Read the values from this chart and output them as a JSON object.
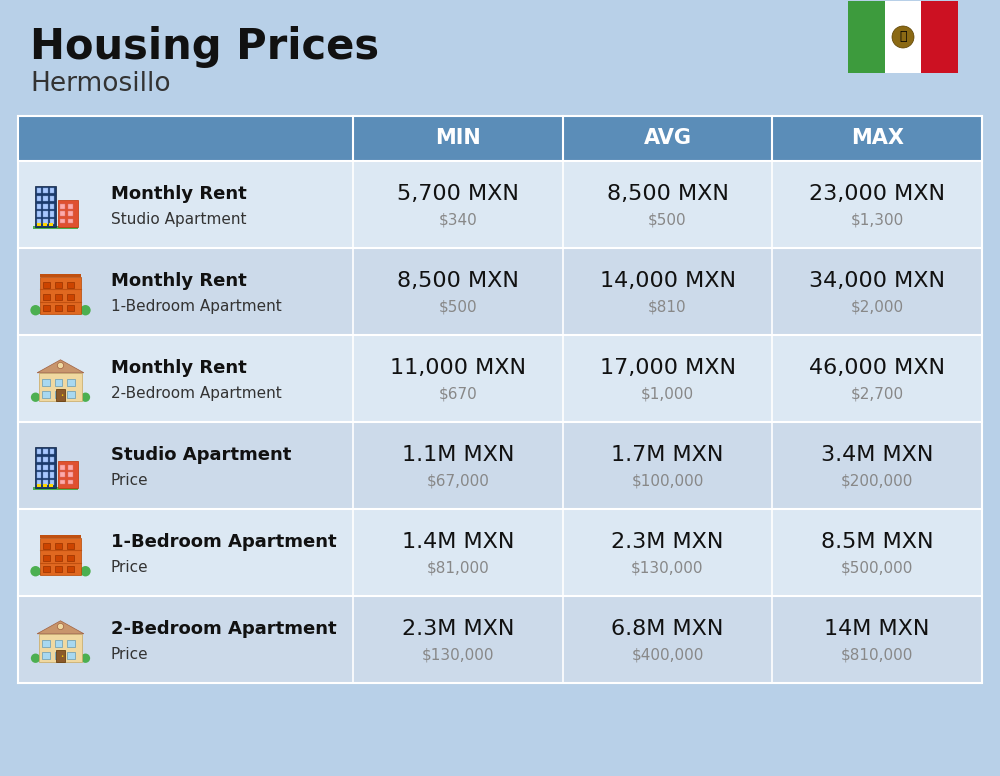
{
  "title": "Housing Prices",
  "subtitle": "Hermosillo",
  "background_color": "#b8d0e8",
  "header_bg_color": "#5b8db8",
  "header_text_color": "#ffffff",
  "col_headers": [
    "MIN",
    "AVG",
    "MAX"
  ],
  "rows": [
    {
      "icon_type": "blue_studio",
      "label_bold": "Monthly Rent",
      "label_light": "Studio Apartment",
      "min_main": "5,700 MXN",
      "min_sub": "$340",
      "avg_main": "8,500 MXN",
      "avg_sub": "$500",
      "max_main": "23,000 MXN",
      "max_sub": "$1,300"
    },
    {
      "icon_type": "orange_1bed",
      "label_bold": "Monthly Rent",
      "label_light": "1-Bedroom Apartment",
      "min_main": "8,500 MXN",
      "min_sub": "$500",
      "avg_main": "14,000 MXN",
      "avg_sub": "$810",
      "max_main": "34,000 MXN",
      "max_sub": "$2,000"
    },
    {
      "icon_type": "tan_2bed",
      "label_bold": "Monthly Rent",
      "label_light": "2-Bedroom Apartment",
      "min_main": "11,000 MXN",
      "min_sub": "$670",
      "avg_main": "17,000 MXN",
      "avg_sub": "$1,000",
      "max_main": "46,000 MXN",
      "max_sub": "$2,700"
    },
    {
      "icon_type": "blue_studio",
      "label_bold": "Studio Apartment",
      "label_light": "Price",
      "min_main": "1.1M MXN",
      "min_sub": "$67,000",
      "avg_main": "1.7M MXN",
      "avg_sub": "$100,000",
      "max_main": "3.4M MXN",
      "max_sub": "$200,000"
    },
    {
      "icon_type": "orange_1bed",
      "label_bold": "1-Bedroom Apartment",
      "label_light": "Price",
      "min_main": "1.4M MXN",
      "min_sub": "$81,000",
      "avg_main": "2.3M MXN",
      "avg_sub": "$130,000",
      "max_main": "8.5M MXN",
      "max_sub": "$500,000"
    },
    {
      "icon_type": "tan_2bed",
      "label_bold": "2-Bedroom Apartment",
      "label_light": "Price",
      "min_main": "2.3M MXN",
      "min_sub": "$130,000",
      "avg_main": "6.8M MXN",
      "avg_sub": "$400,000",
      "max_main": "14M MXN",
      "max_sub": "$810,000"
    }
  ],
  "title_fontsize": 30,
  "subtitle_fontsize": 19,
  "header_fontsize": 15,
  "main_value_fontsize": 16,
  "sub_value_fontsize": 11,
  "label_bold_fontsize": 13,
  "label_light_fontsize": 11
}
